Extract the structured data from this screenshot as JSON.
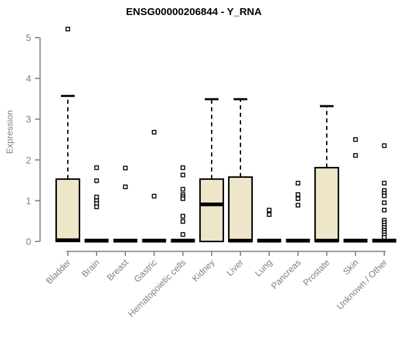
{
  "header": {
    "title": "ENSG00000206844 - Y_RNA"
  },
  "chart_data": {
    "type": "boxplot",
    "title": "ENSG00000206844 - Y_RNA",
    "xlabel": "",
    "ylabel": "Expression",
    "ylim": [
      0,
      5
    ],
    "yticks": [
      0,
      1,
      2,
      3,
      4,
      5
    ],
    "grid": false,
    "legend": false,
    "colors": {
      "box_fill": "#EDE6C8",
      "box_stroke": "#000000",
      "median": "#000000",
      "whisker": "#000000",
      "outlier_fill": "#ffffff",
      "outlier_stroke": "#000000",
      "axis": "#848484",
      "tick_label": "#7f7f7f",
      "title_color": "#000000",
      "background": "#ffffff"
    },
    "categories": [
      "Bladder",
      "Brain",
      "Breast",
      "Gastric",
      "Hematopoietic cells",
      "Kidney",
      "Liver",
      "Lung",
      "Pancreas",
      "Prostate",
      "Skin",
      "Unknown / Other"
    ],
    "boxes": [
      {
        "category": "Bladder",
        "q1": 0,
        "median": 0.03,
        "q3": 1.53,
        "whisker_low": 0,
        "whisker_high": 3.57,
        "outliers": [
          5.21
        ]
      },
      {
        "category": "Brain",
        "q1": 0,
        "median": 0.02,
        "q3": 0.02,
        "whisker_low": 0,
        "whisker_high": 0.02,
        "outliers": [
          1.81,
          1.49,
          1.09,
          1.0,
          0.93,
          0.85
        ]
      },
      {
        "category": "Breast",
        "q1": 0,
        "median": 0.02,
        "q3": 0.02,
        "whisker_low": 0,
        "whisker_high": 0.02,
        "outliers": [
          1.8,
          1.34
        ]
      },
      {
        "category": "Gastric",
        "q1": 0,
        "median": 0.02,
        "q3": 0.02,
        "whisker_low": 0,
        "whisker_high": 0.02,
        "outliers": [
          2.68,
          1.11
        ]
      },
      {
        "category": "Hematopoietic cells",
        "q1": 0,
        "median": 0.02,
        "q3": 0.02,
        "whisker_low": 0,
        "whisker_high": 0.02,
        "outliers": [
          1.81,
          1.63,
          1.28,
          1.15,
          1.1,
          1.05,
          0.62,
          0.49,
          0.17
        ]
      },
      {
        "category": "Kidney",
        "q1": 0,
        "median": 0.91,
        "q3": 1.53,
        "whisker_low": 0,
        "whisker_high": 3.49,
        "outliers": []
      },
      {
        "category": "Liver",
        "q1": 0,
        "median": 0.02,
        "q3": 1.58,
        "whisker_low": 0,
        "whisker_high": 3.49,
        "outliers": []
      },
      {
        "category": "Lung",
        "q1": 0,
        "median": 0.02,
        "q3": 0.02,
        "whisker_low": 0,
        "whisker_high": 0.02,
        "outliers": [
          0.77,
          0.66
        ]
      },
      {
        "category": "Pancreas",
        "q1": 0,
        "median": 0.02,
        "q3": 0.02,
        "whisker_low": 0,
        "whisker_high": 0.02,
        "outliers": [
          1.43,
          1.15,
          1.05,
          0.89
        ]
      },
      {
        "category": "Prostate",
        "q1": 0,
        "median": 0.02,
        "q3": 1.81,
        "whisker_low": 0,
        "whisker_high": 3.32,
        "outliers": []
      },
      {
        "category": "Skin",
        "q1": 0,
        "median": 0.02,
        "q3": 0.02,
        "whisker_low": 0,
        "whisker_high": 0.02,
        "outliers": [
          2.5,
          2.11
        ]
      },
      {
        "category": "Unknown / Other",
        "q1": 0,
        "median": 0.02,
        "q3": 0.02,
        "whisker_low": 0,
        "whisker_high": 0.02,
        "outliers": [
          2.35,
          1.43,
          1.25,
          1.18,
          1.12,
          0.95,
          0.77,
          0.52,
          0.46,
          0.4,
          0.34,
          0.28,
          0.22,
          0.16,
          0.1
        ]
      }
    ]
  }
}
